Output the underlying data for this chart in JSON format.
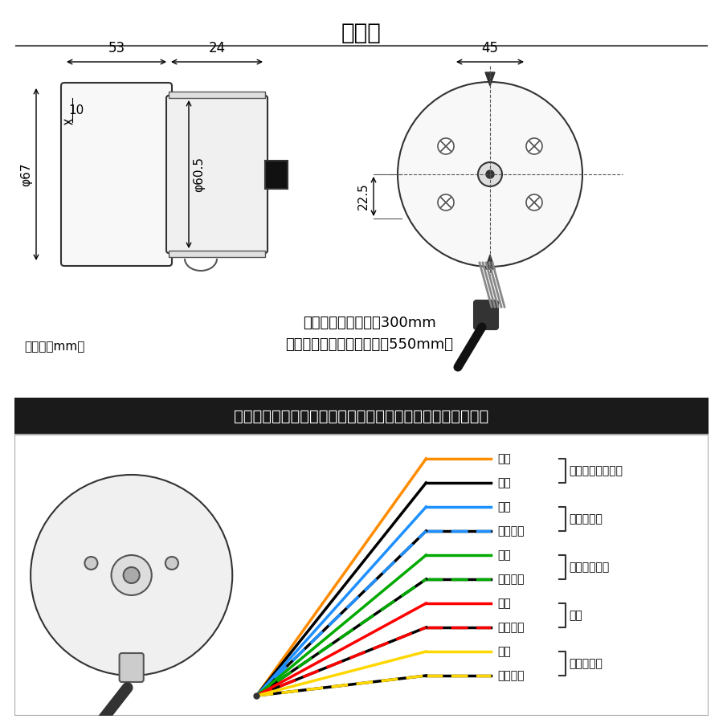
{
  "title": "寸法図",
  "bg_color": "#ffffff",
  "border_color": "#333333",
  "dim_53": "53",
  "dim_24": "24",
  "dim_10": "10",
  "dim_phi67": "φ67",
  "dim_phi605": "φ60.5",
  "dim_45": "45",
  "dim_225": "22.5",
  "harness_text1": "照明用ハーネス：約300mm",
  "harness_text2": "（インジゲーター付きは約550mm）",
  "unit_text": "（単位：mm）",
  "wiring_title": "機械式スピードメーター（インジケータ付き）配線について",
  "wires": [
    {
      "label": "橙＋",
      "color": "#FF8C00",
      "dashed": false,
      "group": "バックライト照明"
    },
    {
      "label": "黒－",
      "color": "#000000",
      "dashed": false,
      "group": "バックライト照明"
    },
    {
      "label": "青＋",
      "color": "#1E90FF",
      "dashed": false,
      "group": "ハイビーム"
    },
    {
      "label": "青／黒－",
      "color": "#1E90FF",
      "dashed": true,
      "group": "ハイビーム"
    },
    {
      "label": "緑＋",
      "color": "#00AA00",
      "dashed": false,
      "group": "ニュートラル"
    },
    {
      "label": "緑／黒－",
      "color": "#00AA00",
      "dashed": true,
      "group": "ニュートラル"
    },
    {
      "label": "赤＋",
      "color": "#FF0000",
      "dashed": false,
      "group": "油圧"
    },
    {
      "label": "赤／黒－",
      "color": "#FF0000",
      "dashed": true,
      "group": "油圧"
    },
    {
      "label": "黄＋",
      "color": "#FFD700",
      "dashed": false,
      "group": "ウインカー"
    },
    {
      "label": "黄／黒－",
      "color": "#FFD700",
      "dashed": true,
      "group": "ウインカー"
    }
  ]
}
